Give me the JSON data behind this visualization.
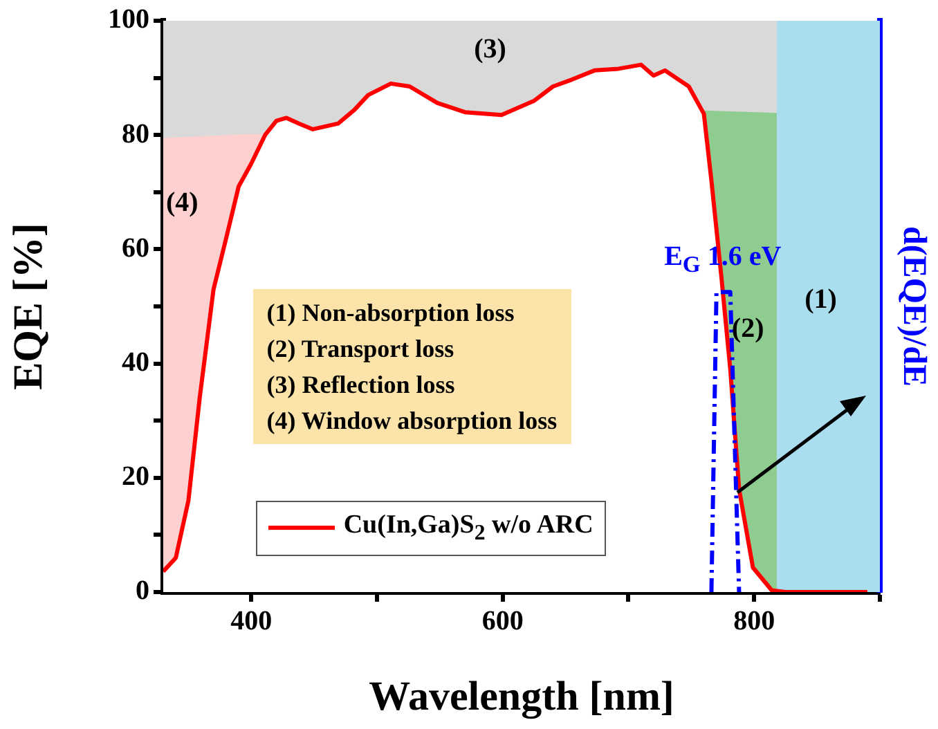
{
  "chart_data": {
    "type": "line",
    "xlabel": "Wavelength [nm]",
    "ylabel": "EQE [%]",
    "y2label": "d(EQE)/dE",
    "xlim": [
      330,
      900
    ],
    "ylim": [
      0,
      100
    ],
    "xticks": [
      {
        "value": 400,
        "label": "400"
      },
      {
        "value": 500,
        "label": null
      },
      {
        "value": 600,
        "label": "600"
      },
      {
        "value": 700,
        "label": null
      },
      {
        "value": 800,
        "label": "800"
      },
      {
        "value": 900,
        "label": null
      }
    ],
    "yticks": [
      0,
      {
        "value": 10,
        "label": null
      },
      20,
      {
        "value": 30,
        "label": null
      },
      40,
      {
        "value": 50,
        "label": null
      },
      60,
      {
        "value": 70,
        "label": null
      },
      80,
      {
        "value": 90,
        "label": null
      },
      100
    ],
    "grid": false,
    "legend": "bottom",
    "marker": "none",
    "bands": [
      {
        "axis": "x",
        "from": 818,
        "to": 900,
        "color": "#aadeef"
      }
    ],
    "series": [
      {
        "type": "area",
        "color": "#d9d9d9",
        "x": [
          330,
          818
        ],
        "values": [
          100,
          100
        ]
      },
      {
        "type": "area",
        "color": "#ffd0d0",
        "x": [
          330,
          340,
          350,
          359,
          370,
          379,
          390,
          400,
          411
        ],
        "values": [
          79.3,
          79.4,
          79.5,
          79.6,
          79.7,
          79.8,
          79.9,
          80,
          80
        ]
      },
      {
        "type": "area",
        "color": "#8fcc8f",
        "x": [
          760,
          818
        ],
        "values": [
          84.1,
          83.7
        ]
      },
      {
        "type": "area",
        "name": "Cu(In,Ga)S$_{2}$ w/o ARC",
        "color": "#ff0000",
        "x": [
          330,
          340,
          350,
          359,
          370,
          379,
          390,
          400,
          411,
          420,
          428,
          438,
          449,
          469,
          482,
          493,
          511,
          526,
          548,
          570,
          599,
          625,
          640,
          655,
          673,
          692,
          710,
          720,
          729,
          748,
          760,
          766,
          774,
          781,
          788,
          799,
          814,
          825,
          890
        ],
        "values": [
          3.6,
          6,
          16,
          34,
          53,
          61,
          71,
          75,
          80,
          82.5,
          83,
          82,
          81,
          82,
          84.4,
          87,
          89,
          88.5,
          85.6,
          84,
          83.5,
          86,
          88.5,
          89.7,
          91.3,
          91.6,
          92.3,
          90.4,
          91.3,
          88.5,
          83.7,
          72,
          55,
          39,
          18,
          4.3,
          0.3,
          0,
          0
        ]
      },
      {
        "color": "#0000ff",
        "line_style": "dashdot",
        "x": [
          766,
          770,
          781,
          788
        ],
        "values": [
          0,
          52.5,
          52.5,
          0
        ]
      }
    ],
    "annotations": [
      "(1) Non-absorption loss",
      "(2) Transport loss",
      "(3) Reflection loss",
      "(4) Window absorption loss",
      {
        "text": "E$_{G}$ 1.6 eV",
        "x": 775,
        "y": 58
      },
      "(1)",
      "(2)",
      "(3)",
      "(4)"
    ]
  }
}
